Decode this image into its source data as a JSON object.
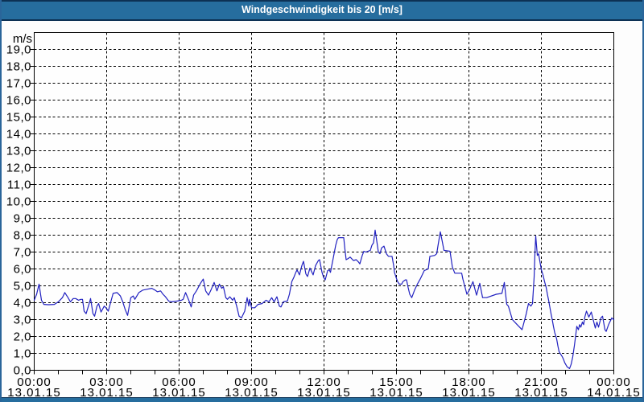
{
  "window": {
    "title": "Windgeschwindigkeit bis 20 [m/s]"
  },
  "colors": {
    "titlebar_bg": "#266d9e",
    "frame_border": "#2a659a",
    "navy_edge": "#0d3154",
    "plot_bg": "#fefefe",
    "grid": "#000000",
    "text": "#000000",
    "line": "#2121c0"
  },
  "chart_data": {
    "type": "line",
    "title": "Windgeschwindigkeit bis 20 [m/s]",
    "ylabel": "m/s",
    "ylim": [
      0,
      20
    ],
    "xlim_hours": [
      0,
      24
    ],
    "grid": "dashed; horizontal every 1 m/s, vertical every 3 h",
    "legend": "none",
    "y_tick_labels": [
      "0,0",
      "1,0",
      "2,0",
      "3,0",
      "4,0",
      "5,0",
      "6,0",
      "7,0",
      "8,0",
      "9,0",
      "10,0",
      "11,0",
      "12,0",
      "13,0",
      "14,0",
      "15,0",
      "16,0",
      "17,0",
      "18,0",
      "19,0"
    ],
    "x_ticks": [
      {
        "hour": 0,
        "time": "00:00",
        "date": "13.01.15"
      },
      {
        "hour": 3,
        "time": "03:00",
        "date": "13.01.15"
      },
      {
        "hour": 6,
        "time": "06:00",
        "date": "13.01.15"
      },
      {
        "hour": 9,
        "time": "09:00",
        "date": "13.01.15"
      },
      {
        "hour": 12,
        "time": "12:00",
        "date": "13.01.15"
      },
      {
        "hour": 15,
        "time": "15:00",
        "date": "13.01.15"
      },
      {
        "hour": 18,
        "time": "18:00",
        "date": "13.01.15"
      },
      {
        "hour": 21,
        "time": "21:00",
        "date": "13.01.15"
      },
      {
        "hour": 24,
        "time": "00:00",
        "date": "14.01.15"
      }
    ],
    "x_minor_tick_every_hours": 1,
    "series": [
      {
        "name": "Windgeschwindigkeit",
        "unit": "m/s",
        "points_minute_value": [
          [
            0,
            4.15
          ],
          [
            6,
            4.5
          ],
          [
            12,
            5.1
          ],
          [
            18,
            4.15
          ],
          [
            24,
            3.9
          ],
          [
            36,
            3.88
          ],
          [
            50,
            3.9
          ],
          [
            60,
            4.05
          ],
          [
            70,
            4.3
          ],
          [
            76,
            4.6
          ],
          [
            84,
            4.3
          ],
          [
            90,
            4.05
          ],
          [
            97,
            4.25
          ],
          [
            103,
            4.25
          ],
          [
            110,
            4.15
          ],
          [
            116,
            4.2
          ],
          [
            120,
            4.2
          ],
          [
            124,
            3.5
          ],
          [
            129,
            3.35
          ],
          [
            136,
            3.9
          ],
          [
            140,
            4.25
          ],
          [
            146,
            3.35
          ],
          [
            150,
            3.2
          ],
          [
            156,
            3.8
          ],
          [
            160,
            3.95
          ],
          [
            166,
            3.45
          ],
          [
            174,
            3.8
          ],
          [
            180,
            3.65
          ],
          [
            184,
            3.5
          ],
          [
            196,
            4.55
          ],
          [
            206,
            4.6
          ],
          [
            214,
            4.4
          ],
          [
            220,
            4.05
          ],
          [
            226,
            3.6
          ],
          [
            232,
            3.25
          ],
          [
            240,
            4.3
          ],
          [
            246,
            4.4
          ],
          [
            250,
            4.2
          ],
          [
            260,
            4.6
          ],
          [
            270,
            4.75
          ],
          [
            281,
            4.8
          ],
          [
            292,
            4.85
          ],
          [
            300,
            4.75
          ],
          [
            306,
            4.65
          ],
          [
            314,
            4.7
          ],
          [
            320,
            4.5
          ],
          [
            326,
            4.35
          ],
          [
            334,
            4.1
          ],
          [
            341,
            4.05
          ],
          [
            356,
            4.1
          ],
          [
            366,
            4.15
          ],
          [
            370,
            4.2
          ],
          [
            376,
            4.6
          ],
          [
            384,
            4.15
          ],
          [
            390,
            3.75
          ],
          [
            396,
            4.45
          ],
          [
            403,
            4.7
          ],
          [
            413,
            5.15
          ],
          [
            420,
            5.4
          ],
          [
            426,
            4.7
          ],
          [
            433,
            4.45
          ],
          [
            440,
            4.8
          ],
          [
            447,
            5.2
          ],
          [
            454,
            4.7
          ],
          [
            460,
            5.1
          ],
          [
            466,
            4.85
          ],
          [
            470,
            4.95
          ],
          [
            476,
            4.3
          ],
          [
            480,
            4.2
          ],
          [
            486,
            4.35
          ],
          [
            493,
            4.15
          ],
          [
            497,
            4.3
          ],
          [
            503,
            3.8
          ],
          [
            509,
            3.2
          ],
          [
            515,
            3.1
          ],
          [
            523,
            3.5
          ],
          [
            529,
            4.3
          ],
          [
            533,
            3.8
          ],
          [
            535,
            4.2
          ],
          [
            540,
            3.7
          ],
          [
            548,
            3.7
          ],
          [
            556,
            3.9
          ],
          [
            566,
            3.95
          ],
          [
            576,
            4.15
          ],
          [
            583,
            4.05
          ],
          [
            590,
            4.3
          ],
          [
            596,
            4.05
          ],
          [
            603,
            4.35
          ],
          [
            609,
            3.8
          ],
          [
            613,
            3.75
          ],
          [
            619,
            4.05
          ],
          [
            629,
            4.1
          ],
          [
            634,
            4.5
          ],
          [
            640,
            5.25
          ],
          [
            645,
            5.5
          ],
          [
            650,
            5.8
          ],
          [
            653,
            5.95
          ],
          [
            659,
            5.65
          ],
          [
            665,
            6.2
          ],
          [
            669,
            6.45
          ],
          [
            675,
            5.7
          ],
          [
            679,
            5.55
          ],
          [
            685,
            6.05
          ],
          [
            693,
            5.65
          ],
          [
            699,
            6.2
          ],
          [
            706,
            6.5
          ],
          [
            709,
            6.55
          ],
          [
            715,
            5.8
          ],
          [
            719,
            5.5
          ],
          [
            723,
            5.35
          ],
          [
            729,
            5.9
          ],
          [
            733,
            5.95
          ],
          [
            736,
            5.8
          ],
          [
            743,
            6.65
          ],
          [
            749,
            7.4
          ],
          [
            753,
            7.75
          ],
          [
            756,
            7.85
          ],
          [
            769,
            7.85
          ],
          [
            772,
            7.15
          ],
          [
            775,
            6.55
          ],
          [
            779,
            6.6
          ],
          [
            785,
            6.7
          ],
          [
            793,
            6.5
          ],
          [
            800,
            6.55
          ],
          [
            806,
            6.4
          ],
          [
            809,
            6.3
          ],
          [
            815,
            6.8
          ],
          [
            819,
            7.05
          ],
          [
            824,
            7.0
          ],
          [
            835,
            7.1
          ],
          [
            839,
            7.4
          ],
          [
            843,
            7.55
          ],
          [
            847,
            8.3
          ],
          [
            852,
            7.5
          ],
          [
            855,
            7.0
          ],
          [
            859,
            6.9
          ],
          [
            863,
            7.25
          ],
          [
            869,
            7.35
          ],
          [
            875,
            6.9
          ],
          [
            880,
            6.75
          ],
          [
            889,
            6.75
          ],
          [
            893,
            6.2
          ],
          [
            895,
            5.8
          ],
          [
            899,
            5.5
          ],
          [
            903,
            5.25
          ],
          [
            907,
            5.1
          ],
          [
            913,
            5.1
          ],
          [
            916,
            5.25
          ],
          [
            922,
            5.35
          ],
          [
            925,
            5.35
          ],
          [
            929,
            4.9
          ],
          [
            933,
            4.5
          ],
          [
            938,
            4.3
          ],
          [
            945,
            4.75
          ],
          [
            953,
            5.15
          ],
          [
            959,
            5.4
          ],
          [
            969,
            5.9
          ],
          [
            979,
            6.0
          ],
          [
            983,
            6.75
          ],
          [
            995,
            6.8
          ],
          [
            1000,
            6.9
          ],
          [
            1004,
            7.5
          ],
          [
            1009,
            8.2
          ],
          [
            1014,
            7.6
          ],
          [
            1018,
            7.1
          ],
          [
            1033,
            7.05
          ],
          [
            1039,
            6.1
          ],
          [
            1045,
            5.75
          ],
          [
            1062,
            5.75
          ],
          [
            1065,
            5.4
          ],
          [
            1075,
            4.5
          ],
          [
            1081,
            4.75
          ],
          [
            1090,
            5.25
          ],
          [
            1099,
            4.45
          ],
          [
            1107,
            5.15
          ],
          [
            1114,
            4.3
          ],
          [
            1124,
            4.3
          ],
          [
            1148,
            4.5
          ],
          [
            1162,
            4.55
          ],
          [
            1168,
            5.2
          ],
          [
            1174,
            3.9
          ],
          [
            1178,
            3.8
          ],
          [
            1188,
            3.0
          ],
          [
            1198,
            2.75
          ],
          [
            1204,
            2.6
          ],
          [
            1212,
            2.4
          ],
          [
            1222,
            3.3
          ],
          [
            1228,
            3.95
          ],
          [
            1234,
            3.8
          ],
          [
            1238,
            3.95
          ],
          [
            1242,
            5.5
          ],
          [
            1244,
            6.9
          ],
          [
            1246,
            7.95
          ],
          [
            1250,
            6.8
          ],
          [
            1253,
            6.9
          ],
          [
            1260,
            5.95
          ],
          [
            1264,
            5.65
          ],
          [
            1268,
            5.25
          ],
          [
            1272,
            4.9
          ],
          [
            1275,
            4.5
          ],
          [
            1278,
            4.15
          ],
          [
            1281,
            3.75
          ],
          [
            1284,
            3.35
          ],
          [
            1287,
            3.0
          ],
          [
            1290,
            2.6
          ],
          [
            1293,
            2.25
          ],
          [
            1298,
            1.85
          ],
          [
            1301,
            1.45
          ],
          [
            1304,
            1.1
          ],
          [
            1308,
            0.95
          ],
          [
            1312,
            0.8
          ],
          [
            1315,
            0.65
          ],
          [
            1318,
            0.45
          ],
          [
            1324,
            0.2
          ],
          [
            1330,
            0.1
          ],
          [
            1334,
            0.35
          ],
          [
            1338,
            0.8
          ],
          [
            1342,
            1.45
          ],
          [
            1345,
            2.0
          ],
          [
            1348,
            2.6
          ],
          [
            1352,
            2.4
          ],
          [
            1355,
            2.7
          ],
          [
            1358,
            2.55
          ],
          [
            1362,
            2.85
          ],
          [
            1365,
            2.7
          ],
          [
            1368,
            3.15
          ],
          [
            1372,
            3.5
          ],
          [
            1378,
            3.15
          ],
          [
            1384,
            3.45
          ],
          [
            1394,
            2.5
          ],
          [
            1398,
            2.85
          ],
          [
            1402,
            2.55
          ],
          [
            1408,
            3.1
          ],
          [
            1412,
            3.2
          ],
          [
            1418,
            2.4
          ],
          [
            1421,
            2.3
          ],
          [
            1427,
            2.7
          ],
          [
            1435,
            3.1
          ],
          [
            1440,
            3.0
          ]
        ]
      }
    ]
  }
}
